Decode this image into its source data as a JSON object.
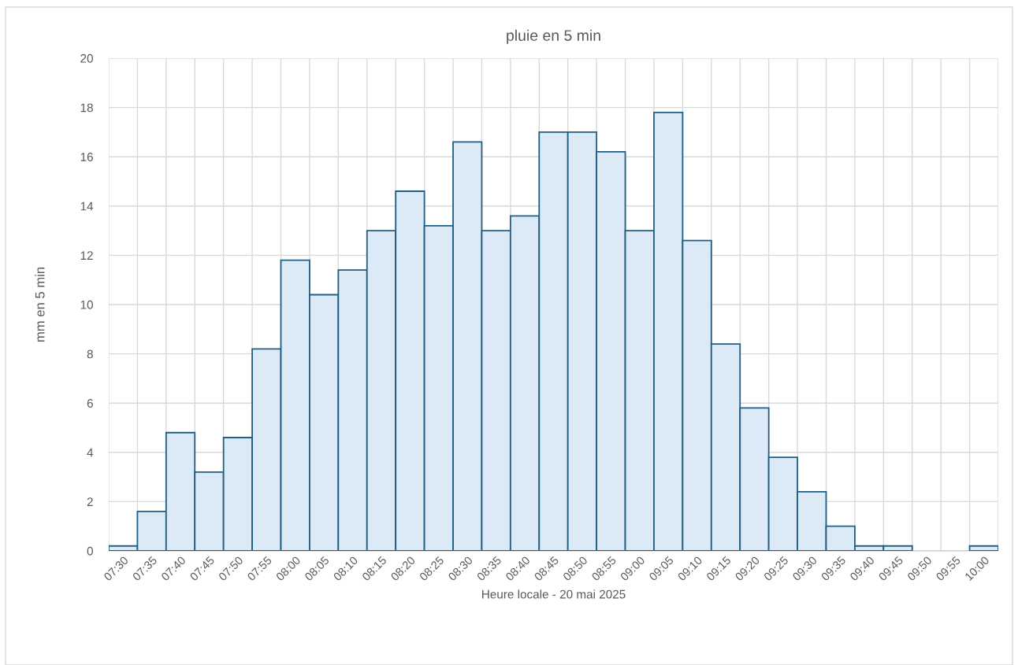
{
  "chart_data": {
    "type": "bar",
    "title": "pluie en 5 min",
    "xlabel": "Heure locale - 20 mai 2025",
    "ylabel": "mm en 5 min",
    "categories": [
      "07:30",
      "07:35",
      "07:40",
      "07:45",
      "07:50",
      "07:55",
      "08:00",
      "08:05",
      "08:10",
      "08:15",
      "08:20",
      "08:25",
      "08:30",
      "08:35",
      "08:40",
      "08:45",
      "08:50",
      "08:55",
      "09:00",
      "09:05",
      "09:10",
      "09:15",
      "09:20",
      "09:25",
      "09:30",
      "09:35",
      "09:40",
      "09:45",
      "09:50",
      "09:55",
      "10:00"
    ],
    "values": [
      0.2,
      1.6,
      4.8,
      3.2,
      4.6,
      8.2,
      11.8,
      10.4,
      11.4,
      13,
      14.6,
      13.2,
      16.6,
      13,
      13.6,
      17,
      17,
      16.2,
      13,
      17.8,
      12.6,
      8.4,
      5.8,
      3.8,
      2.4,
      1.0,
      0.2,
      0.2,
      0,
      0,
      0.2
    ],
    "color": "#dce9f6",
    "ylim": [
      0,
      20
    ],
    "yticks": [
      0,
      2,
      4,
      6,
      8,
      10,
      12,
      14,
      16,
      18,
      20
    ],
    "grid": true
  }
}
